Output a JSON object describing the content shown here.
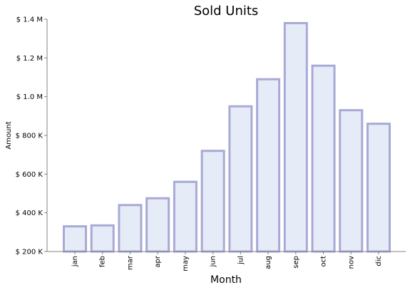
{
  "chart_data": {
    "type": "bar",
    "title": "Sold Units",
    "xlabel": "Month",
    "ylabel": "Amount",
    "categories": [
      "jan",
      "feb",
      "mar",
      "apr",
      "may",
      "jun",
      "jul",
      "aug",
      "sep",
      "oct",
      "nov",
      "dic"
    ],
    "values": [
      330000,
      335000,
      440000,
      475000,
      560000,
      720000,
      950000,
      1090000,
      1380000,
      1160000,
      930000,
      860000
    ],
    "ylim": [
      200000,
      1400000
    ],
    "yticks": [
      200000,
      400000,
      600000,
      800000,
      1000000,
      1200000,
      1400000
    ],
    "ytick_labels": [
      "$ 200 K",
      "$ 400 K",
      "$ 600 K",
      "$ 800 K",
      "$ 1.0 M",
      "$ 1.2 M",
      "$ 1.4 M"
    ],
    "grid": false,
    "colors": {
      "bar_fill": "#e6ecf7",
      "bar_edge": "#a8a9d6",
      "axis": "#808080"
    }
  }
}
